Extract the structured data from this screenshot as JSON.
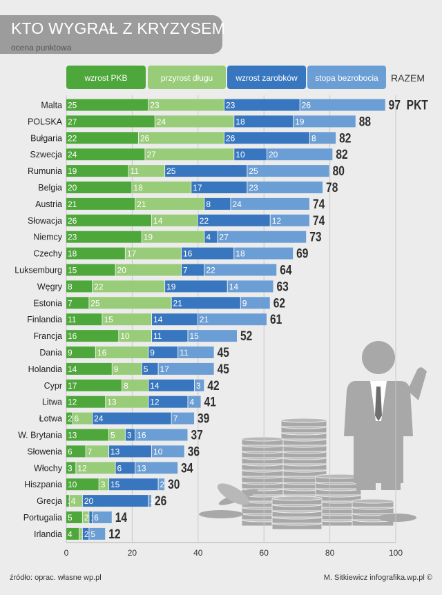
{
  "title": "KTO WYGRAŁ Z KRYZYSEM",
  "subtitle": "ocena punktowa",
  "source": "źródło: oprac. własne wp.pl",
  "credit": "M. Sitkiewicz infografika.wp.pl ©",
  "total_header": "RAZEM",
  "total_unit": "PKT",
  "colors": {
    "wzrost_pkb": "#4ea73a",
    "przyrost_dlugu": "#98cc78",
    "wzrost_zarobkow": "#3877bf",
    "stopa_bezrobocia": "#6b9ed4",
    "illustration": "#a8a8a8"
  },
  "chart_data": {
    "type": "bar",
    "orientation": "horizontal",
    "stacked": true,
    "legend_position": "top",
    "grid": true,
    "xlim": [
      0,
      100
    ],
    "xticks": [
      "0",
      "20",
      "40",
      "60",
      "80",
      "100"
    ],
    "categories": [
      "Malta",
      "POLSKA",
      "Bułgaria",
      "Szwecja",
      "Rumunia",
      "Belgia",
      "Austria",
      "Słowacja",
      "Niemcy",
      "Czechy",
      "Luksemburg",
      "Węgry",
      "Estonia",
      "Finlandia",
      "Francja",
      "Dania",
      "Holandia",
      "Cypr",
      "Litwa",
      "Łotwa",
      "W. Brytania",
      "Słowenia",
      "Włochy",
      "Hiszpania",
      "Grecja",
      "Portugalia",
      "Irlandia"
    ],
    "series": [
      {
        "name": "wzrost PKB",
        "values": [
          25,
          27,
          22,
          24,
          19,
          20,
          21,
          26,
          23,
          18,
          15,
          8,
          7,
          11,
          16,
          9,
          14,
          17,
          12,
          2,
          13,
          6,
          3,
          10,
          1,
          5,
          4
        ]
      },
      {
        "name": "przyrost długu",
        "values": [
          23,
          24,
          26,
          27,
          11,
          18,
          21,
          14,
          19,
          17,
          20,
          22,
          25,
          15,
          10,
          16,
          9,
          8,
          13,
          6,
          5,
          7,
          12,
          3,
          4,
          2,
          1
        ]
      },
      {
        "name": "wzrost zarobków",
        "values": [
          23,
          18,
          26,
          10,
          25,
          17,
          8,
          22,
          4,
          16,
          7,
          19,
          21,
          14,
          11,
          9,
          5,
          14,
          12,
          24,
          3,
          13,
          6,
          15,
          20,
          1,
          2
        ]
      },
      {
        "name": "stopa bezrobocia",
        "values": [
          26,
          19,
          8,
          20,
          25,
          23,
          24,
          12,
          27,
          18,
          22,
          14,
          9,
          21,
          15,
          11,
          17,
          3,
          4,
          7,
          16,
          10,
          13,
          2,
          1,
          6,
          5
        ]
      }
    ],
    "totals": [
      97,
      88,
      82,
      82,
      80,
      78,
      74,
      74,
      73,
      69,
      64,
      63,
      62,
      61,
      52,
      45,
      45,
      42,
      41,
      39,
      37,
      36,
      34,
      30,
      26,
      14,
      12
    ]
  }
}
